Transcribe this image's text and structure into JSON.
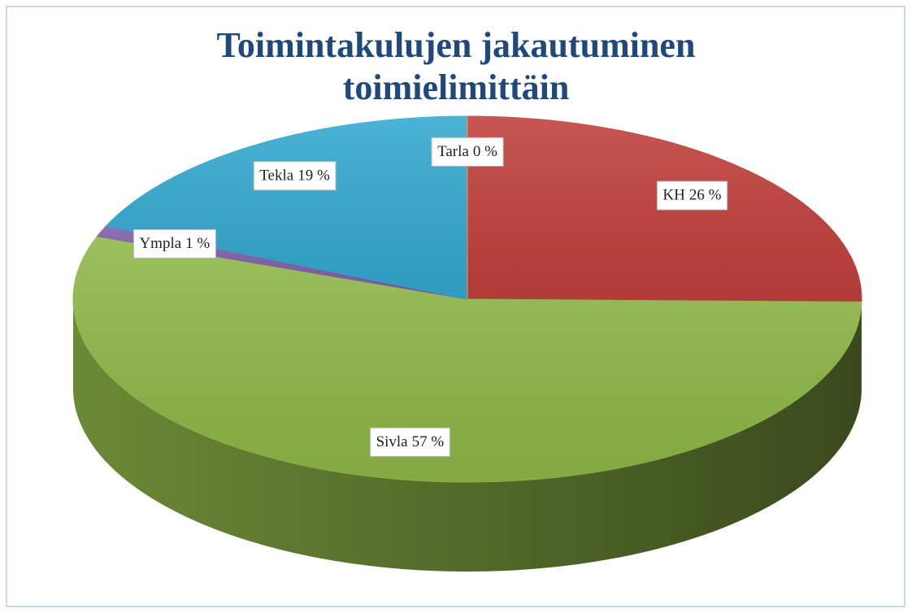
{
  "chart_data": {
    "type": "pie3d",
    "title": [
      "Toimintakulujen jakautuminen",
      "toimielimittäin"
    ],
    "categories": [
      "KH",
      "Sivla",
      "Ympla",
      "Tekla",
      "Tarla"
    ],
    "values": [
      26,
      57,
      1,
      19,
      0
    ],
    "value_labels": [
      "26 %",
      "57 %",
      "1 %",
      "19 %",
      "0 %"
    ],
    "colors": [
      "#c0403c",
      "#8fb848",
      "#7d5fa8",
      "#33a9d0",
      "#f79646"
    ]
  }
}
